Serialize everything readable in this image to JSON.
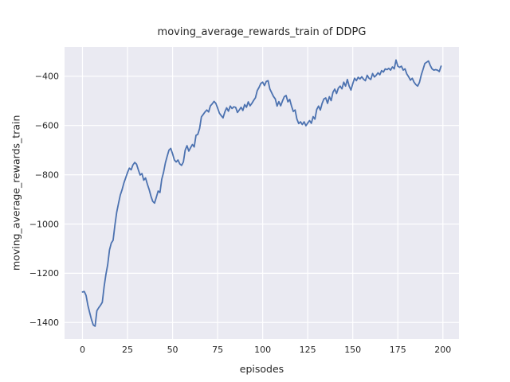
{
  "figure": {
    "title": "moving_average_rewards_train of DDPG",
    "xlabel": "episodes",
    "ylabel": "moving_average_rewards_train"
  },
  "chart_data": {
    "type": "line",
    "title": "moving_average_rewards_train of DDPG",
    "xlabel": "episodes",
    "ylabel": "moving_average_rewards_train",
    "style": "seaborn-darkgrid",
    "grid": true,
    "legend": false,
    "xlim": [
      -9.95,
      208.95
    ],
    "ylim": [
      -1467,
      -281
    ],
    "xticks": [
      0,
      25,
      50,
      75,
      100,
      125,
      150,
      175,
      200
    ],
    "xtick_labels": [
      "0",
      "25",
      "50",
      "75",
      "100",
      "125",
      "150",
      "175",
      "200"
    ],
    "yticks": [
      -400,
      -600,
      -800,
      -1000,
      -1200,
      -1400
    ],
    "ytick_labels": [
      "−400",
      "−600",
      "−800",
      "−1000",
      "−1200",
      "−1400"
    ],
    "colors": {
      "line": "#4c72b0",
      "axes_background": "#eaeaf2",
      "grid": "#ffffff",
      "figure_background": "#ffffff",
      "text": "#262626"
    },
    "series": [
      {
        "name": "moving_average_rewards_train",
        "points": [
          [
            0,
            -1276
          ],
          [
            1,
            -1274
          ],
          [
            2,
            -1290
          ],
          [
            3,
            -1330
          ],
          [
            4,
            -1360
          ],
          [
            5,
            -1388
          ],
          [
            6,
            -1410
          ],
          [
            7,
            -1415
          ],
          [
            8,
            -1352
          ],
          [
            9,
            -1340
          ],
          [
            10,
            -1330
          ],
          [
            11,
            -1318
          ],
          [
            12,
            -1255
          ],
          [
            13,
            -1205
          ],
          [
            14,
            -1165
          ],
          [
            15,
            -1105
          ],
          [
            16,
            -1077
          ],
          [
            17,
            -1066
          ],
          [
            18,
            -1005
          ],
          [
            19,
            -952
          ],
          [
            20,
            -916
          ],
          [
            21,
            -882
          ],
          [
            22,
            -860
          ],
          [
            23,
            -833
          ],
          [
            24,
            -812
          ],
          [
            25,
            -791
          ],
          [
            26,
            -773
          ],
          [
            27,
            -780
          ],
          [
            28,
            -760
          ],
          [
            29,
            -750
          ],
          [
            30,
            -757
          ],
          [
            31,
            -780
          ],
          [
            32,
            -801
          ],
          [
            33,
            -795
          ],
          [
            34,
            -822
          ],
          [
            35,
            -813
          ],
          [
            36,
            -838
          ],
          [
            37,
            -860
          ],
          [
            38,
            -887
          ],
          [
            39,
            -908
          ],
          [
            40,
            -915
          ],
          [
            41,
            -891
          ],
          [
            42,
            -866
          ],
          [
            43,
            -872
          ],
          [
            44,
            -818
          ],
          [
            45,
            -790
          ],
          [
            46,
            -752
          ],
          [
            47,
            -725
          ],
          [
            48,
            -700
          ],
          [
            49,
            -693
          ],
          [
            50,
            -715
          ],
          [
            51,
            -740
          ],
          [
            52,
            -748
          ],
          [
            53,
            -740
          ],
          [
            54,
            -756
          ],
          [
            55,
            -762
          ],
          [
            56,
            -748
          ],
          [
            57,
            -700
          ],
          [
            58,
            -682
          ],
          [
            59,
            -704
          ],
          [
            60,
            -690
          ],
          [
            61,
            -677
          ],
          [
            62,
            -687
          ],
          [
            63,
            -640
          ],
          [
            64,
            -636
          ],
          [
            65,
            -612
          ],
          [
            66,
            -565
          ],
          [
            67,
            -555
          ],
          [
            68,
            -545
          ],
          [
            69,
            -537
          ],
          [
            70,
            -545
          ],
          [
            71,
            -520
          ],
          [
            72,
            -512
          ],
          [
            73,
            -502
          ],
          [
            74,
            -510
          ],
          [
            75,
            -529
          ],
          [
            76,
            -550
          ],
          [
            77,
            -560
          ],
          [
            78,
            -569
          ],
          [
            79,
            -545
          ],
          [
            80,
            -528
          ],
          [
            81,
            -542
          ],
          [
            82,
            -521
          ],
          [
            83,
            -531
          ],
          [
            84,
            -524
          ],
          [
            85,
            -526
          ],
          [
            86,
            -547
          ],
          [
            87,
            -537
          ],
          [
            88,
            -526
          ],
          [
            89,
            -539
          ],
          [
            90,
            -515
          ],
          [
            91,
            -526
          ],
          [
            92,
            -504
          ],
          [
            93,
            -520
          ],
          [
            94,
            -510
          ],
          [
            95,
            -498
          ],
          [
            96,
            -487
          ],
          [
            97,
            -458
          ],
          [
            98,
            -445
          ],
          [
            99,
            -429
          ],
          [
            100,
            -424
          ],
          [
            101,
            -438
          ],
          [
            102,
            -421
          ],
          [
            103,
            -418
          ],
          [
            104,
            -452
          ],
          [
            105,
            -467
          ],
          [
            106,
            -482
          ],
          [
            107,
            -492
          ],
          [
            108,
            -521
          ],
          [
            109,
            -503
          ],
          [
            110,
            -520
          ],
          [
            111,
            -500
          ],
          [
            112,
            -483
          ],
          [
            113,
            -478
          ],
          [
            114,
            -504
          ],
          [
            115,
            -494
          ],
          [
            116,
            -521
          ],
          [
            117,
            -543
          ],
          [
            118,
            -537
          ],
          [
            119,
            -574
          ],
          [
            120,
            -592
          ],
          [
            121,
            -585
          ],
          [
            122,
            -596
          ],
          [
            123,
            -585
          ],
          [
            124,
            -601
          ],
          [
            125,
            -590
          ],
          [
            126,
            -580
          ],
          [
            127,
            -591
          ],
          [
            128,
            -564
          ],
          [
            129,
            -574
          ],
          [
            130,
            -535
          ],
          [
            131,
            -521
          ],
          [
            132,
            -537
          ],
          [
            133,
            -510
          ],
          [
            134,
            -492
          ],
          [
            135,
            -488
          ],
          [
            136,
            -510
          ],
          [
            137,
            -483
          ],
          [
            138,
            -499
          ],
          [
            139,
            -465
          ],
          [
            140,
            -452
          ],
          [
            141,
            -470
          ],
          [
            142,
            -448
          ],
          [
            143,
            -440
          ],
          [
            144,
            -451
          ],
          [
            145,
            -424
          ],
          [
            146,
            -440
          ],
          [
            147,
            -413
          ],
          [
            148,
            -440
          ],
          [
            149,
            -456
          ],
          [
            150,
            -430
          ],
          [
            151,
            -408
          ],
          [
            152,
            -418
          ],
          [
            153,
            -404
          ],
          [
            154,
            -411
          ],
          [
            155,
            -402
          ],
          [
            156,
            -412
          ],
          [
            157,
            -418
          ],
          [
            158,
            -396
          ],
          [
            159,
            -408
          ],
          [
            160,
            -413
          ],
          [
            161,
            -389
          ],
          [
            162,
            -403
          ],
          [
            163,
            -396
          ],
          [
            164,
            -386
          ],
          [
            165,
            -394
          ],
          [
            166,
            -377
          ],
          [
            167,
            -383
          ],
          [
            168,
            -370
          ],
          [
            169,
            -373
          ],
          [
            170,
            -368
          ],
          [
            171,
            -375
          ],
          [
            172,
            -362
          ],
          [
            173,
            -370
          ],
          [
            174,
            -334
          ],
          [
            175,
            -359
          ],
          [
            176,
            -364
          ],
          [
            177,
            -359
          ],
          [
            178,
            -375
          ],
          [
            179,
            -370
          ],
          [
            180,
            -391
          ],
          [
            181,
            -402
          ],
          [
            182,
            -416
          ],
          [
            183,
            -408
          ],
          [
            184,
            -424
          ],
          [
            185,
            -434
          ],
          [
            186,
            -440
          ],
          [
            187,
            -425
          ],
          [
            188,
            -395
          ],
          [
            189,
            -372
          ],
          [
            190,
            -348
          ],
          [
            191,
            -343
          ],
          [
            192,
            -338
          ],
          [
            193,
            -356
          ],
          [
            194,
            -370
          ],
          [
            195,
            -375
          ],
          [
            196,
            -373
          ],
          [
            197,
            -375
          ],
          [
            198,
            -381
          ],
          [
            199,
            -359
          ]
        ]
      }
    ]
  }
}
